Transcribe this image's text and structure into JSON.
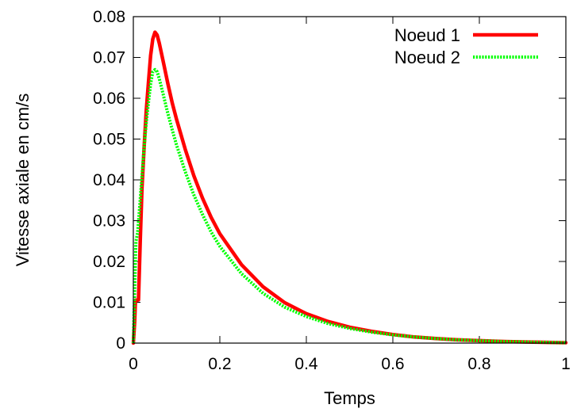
{
  "chart_data": {
    "type": "line",
    "title": "",
    "xlabel": "Temps",
    "ylabel": "Vitesse axiale en cm/s",
    "xlim": [
      0,
      1
    ],
    "ylim": [
      0,
      0.08
    ],
    "x_ticks": [
      0,
      0.2,
      0.4,
      0.6,
      0.8,
      1
    ],
    "x_tick_labels": [
      "0",
      "0.2",
      "0.4",
      "0.6",
      "0.8",
      "1"
    ],
    "y_ticks": [
      0,
      0.01,
      0.02,
      0.03,
      0.04,
      0.05,
      0.06,
      0.07,
      0.08
    ],
    "y_tick_labels": [
      "0",
      "0.01",
      "0.02",
      "0.03",
      "0.04",
      "0.05",
      "0.06",
      "0.07",
      "0.08"
    ],
    "grid": false,
    "legend_position": "top-right",
    "series": [
      {
        "name": "Noeud 1",
        "color": "#ff0000",
        "style": "solid",
        "x": [
          0,
          0.003,
          0.005,
          0.008,
          0.012,
          0.016,
          0.02,
          0.025,
          0.03,
          0.035,
          0.04,
          0.045,
          0.05,
          0.055,
          0.06,
          0.07,
          0.08,
          0.09,
          0.1,
          0.12,
          0.14,
          0.16,
          0.18,
          0.2,
          0.25,
          0.3,
          0.35,
          0.4,
          0.45,
          0.5,
          0.55,
          0.6,
          0.65,
          0.7,
          0.75,
          0.8,
          0.85,
          0.9,
          0.95,
          1.0
        ],
        "y": [
          0,
          0.005,
          0.0105,
          0.0105,
          0.0106,
          0.025,
          0.038,
          0.048,
          0.057,
          0.064,
          0.0705,
          0.0745,
          0.0762,
          0.0755,
          0.0735,
          0.0685,
          0.0635,
          0.0588,
          0.0548,
          0.0475,
          0.041,
          0.0355,
          0.0308,
          0.0268,
          0.0192,
          0.0138,
          0.0099,
          0.0072,
          0.0053,
          0.0039,
          0.0029,
          0.0021,
          0.0015,
          0.0011,
          0.0008,
          0.0006,
          0.0004,
          0.0003,
          0.0002,
          0.0001
        ]
      },
      {
        "name": "Noeud 2",
        "color": "#00ff00",
        "style": "dotted",
        "x": [
          0,
          0.003,
          0.006,
          0.01,
          0.015,
          0.02,
          0.025,
          0.03,
          0.035,
          0.04,
          0.045,
          0.05,
          0.055,
          0.06,
          0.07,
          0.08,
          0.09,
          0.1,
          0.12,
          0.14,
          0.16,
          0.18,
          0.2,
          0.25,
          0.3,
          0.35,
          0.4,
          0.45,
          0.5,
          0.55,
          0.6,
          0.65,
          0.7,
          0.75,
          0.8,
          0.85,
          0.9,
          0.95,
          1.0
        ],
        "y": [
          0,
          0.012,
          0.025,
          0.027,
          0.034,
          0.041,
          0.048,
          0.054,
          0.059,
          0.0635,
          0.0665,
          0.067,
          0.0665,
          0.0648,
          0.0605,
          0.0562,
          0.0522,
          0.0485,
          0.042,
          0.0363,
          0.0315,
          0.0272,
          0.0237,
          0.017,
          0.0122,
          0.0088,
          0.0065,
          0.0048,
          0.0036,
          0.0027,
          0.002,
          0.0015,
          0.0011,
          0.0008,
          0.0006,
          0.0004,
          0.0003,
          0.0002,
          0.0001
        ]
      }
    ]
  }
}
